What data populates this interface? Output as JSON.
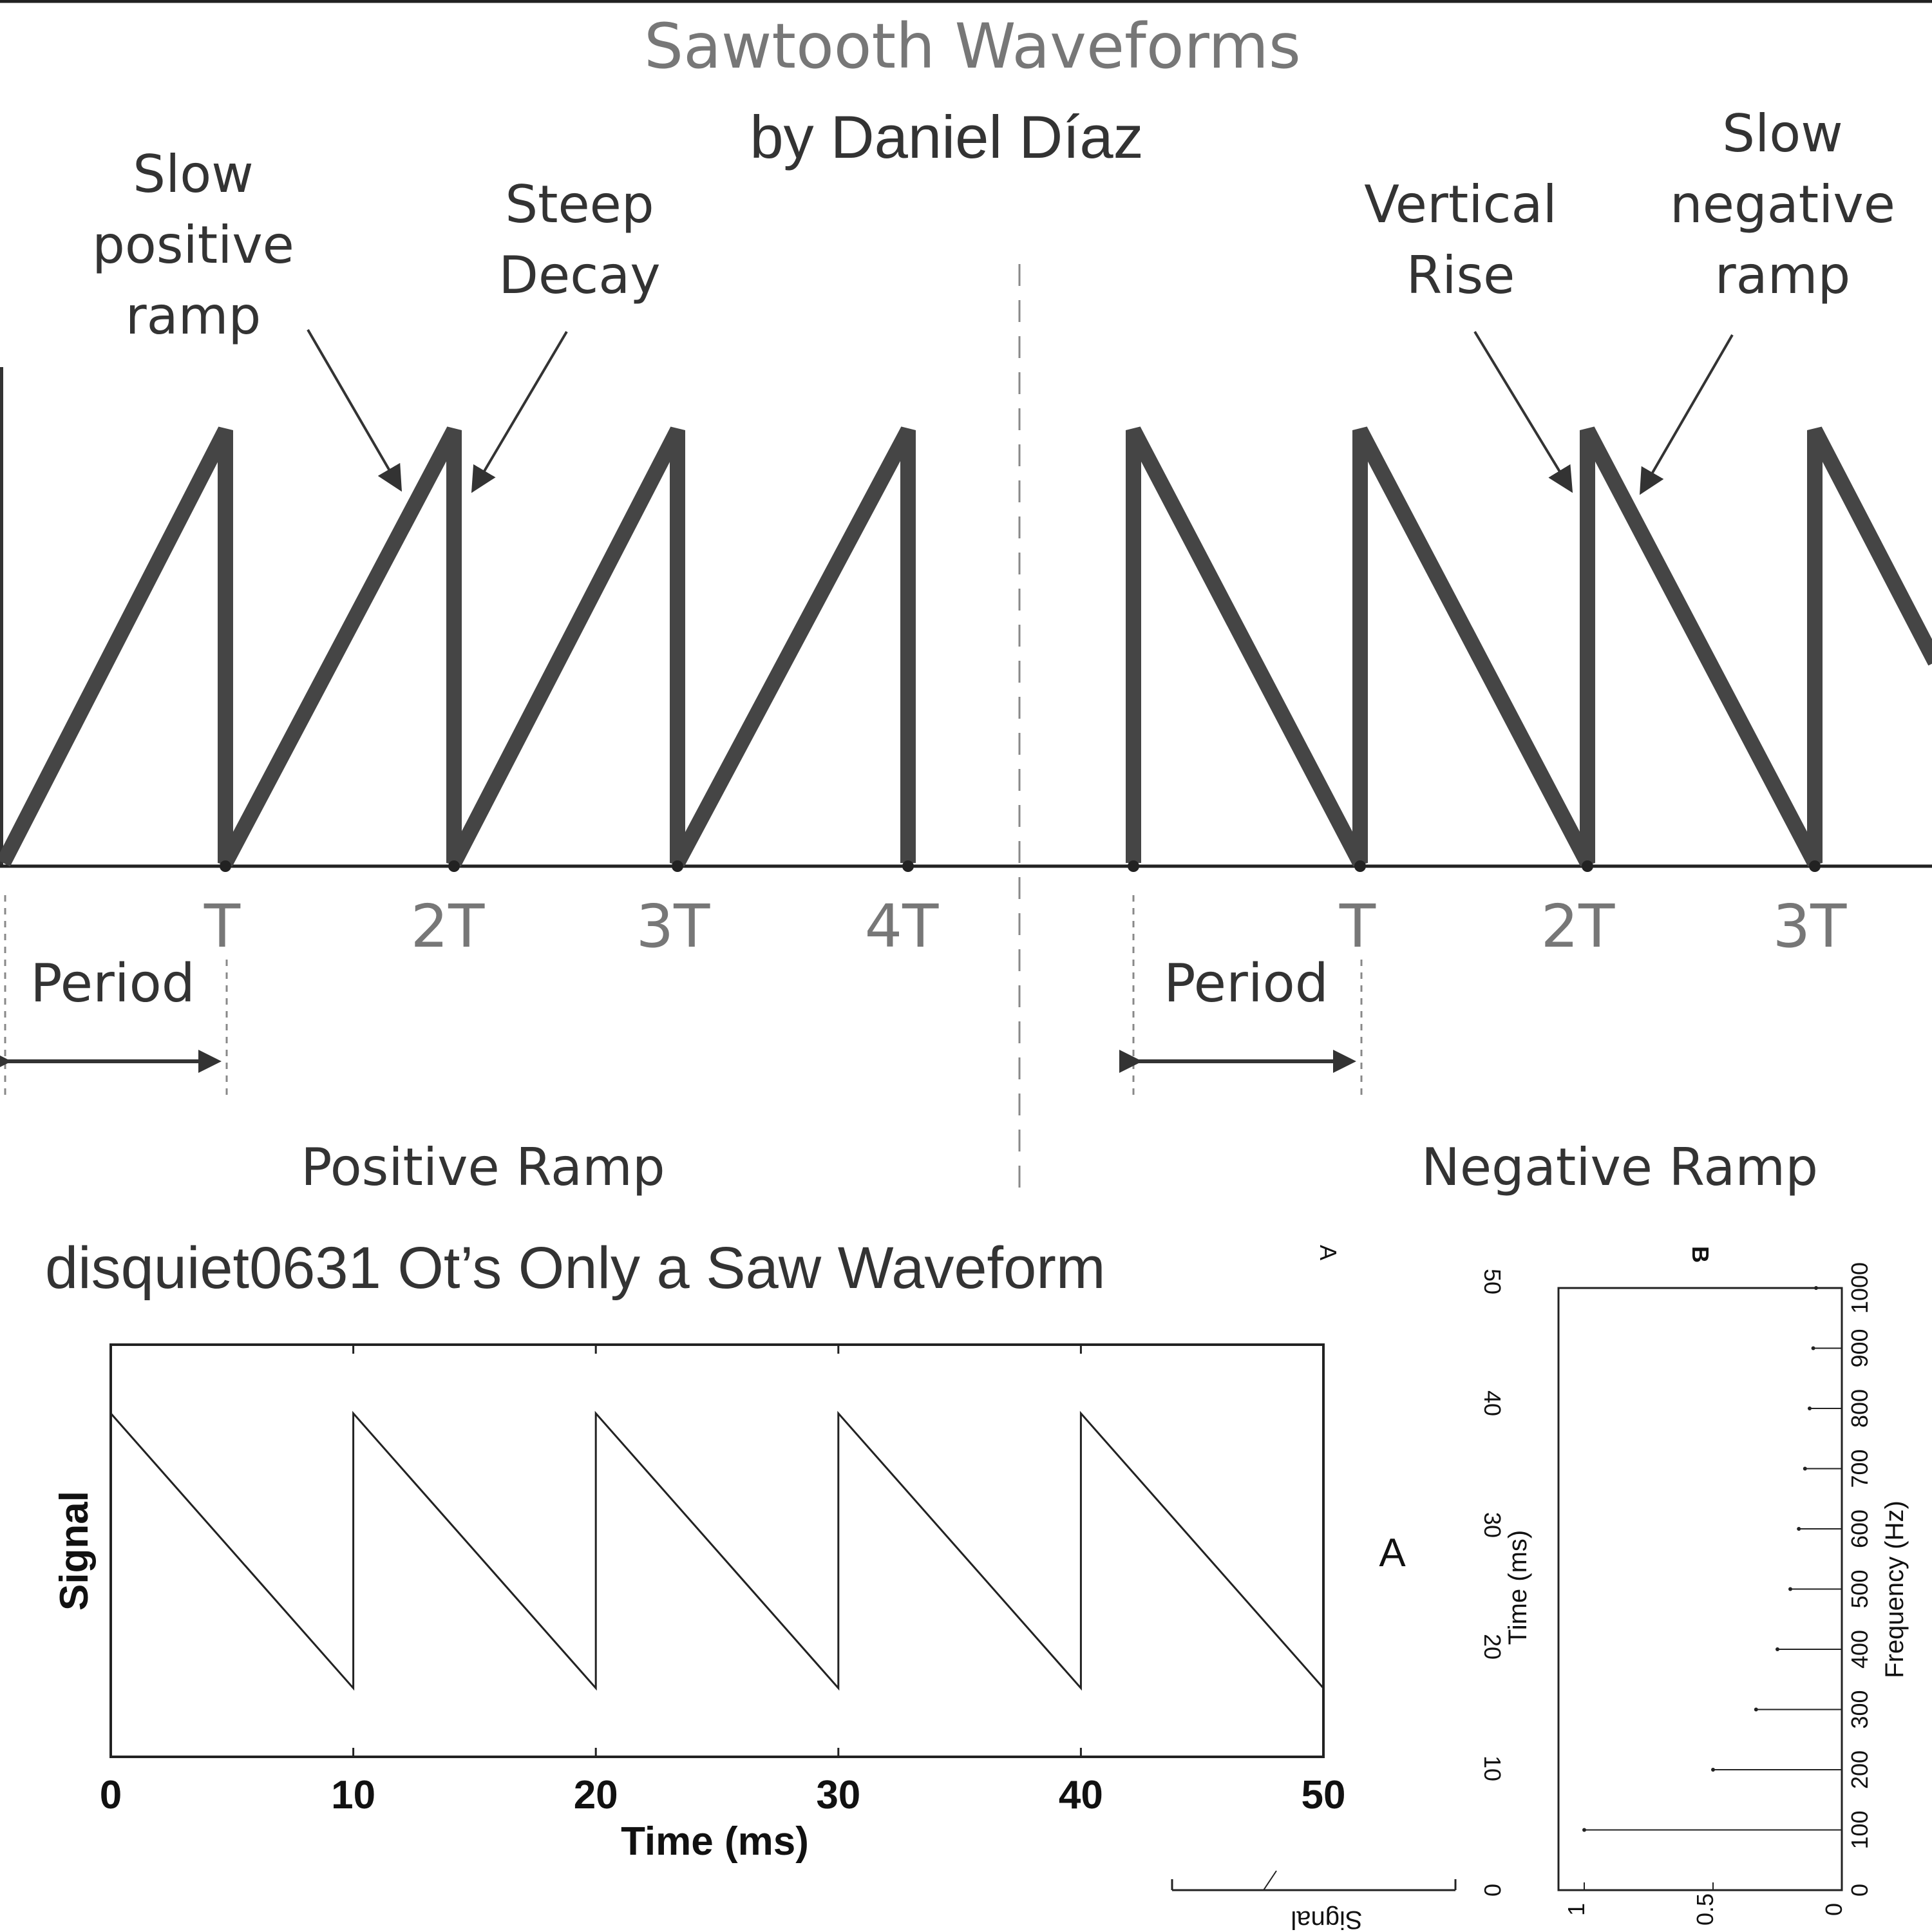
{
  "title": "Sawtooth Waveforms",
  "author": "by Daniel Díaz",
  "caption": "disquiet0631 Ot’s Only a Saw Waveform",
  "positive": {
    "label_slow_ramp": [
      "Slow",
      "positive",
      "ramp"
    ],
    "label_steep_decay": [
      "Steep",
      "Decay"
    ],
    "ticks": [
      "T",
      "2T",
      "3T",
      "4T"
    ],
    "period_label": "Period",
    "section_label": "Positive Ramp"
  },
  "negative": {
    "label_vertical_rise": [
      "Vertical",
      "Rise"
    ],
    "label_slow_neg_ramp": [
      "Slow",
      "negative",
      "ramp"
    ],
    "ticks": [
      "T",
      "2T",
      "3T"
    ],
    "period_label": "Period",
    "section_label": "Negative Ramp"
  },
  "chart_data": [
    {
      "type": "line",
      "panel": "A",
      "xlabel": "Time (ms)",
      "ylabel": "Signal",
      "xlim": [
        0,
        50
      ],
      "ylim": [
        -1.5,
        1.5
      ],
      "xticks": [
        "0",
        "10",
        "20",
        "30",
        "40",
        "50"
      ],
      "x": [
        0,
        10,
        10,
        20,
        20,
        30,
        30,
        40,
        40,
        50
      ],
      "y": [
        1,
        -1,
        1,
        -1,
        1,
        -1,
        1,
        -1,
        1,
        -1
      ]
    },
    {
      "type": "line",
      "panel": "A",
      "note": "rotated duplicate, partially visible",
      "xlabel": "Time (ms)",
      "ylabel": "Signal",
      "xticks": [
        "0",
        "10",
        "20",
        "30",
        "40",
        "50"
      ]
    },
    {
      "type": "bar",
      "panel": "B",
      "xlabel": "Frequency (Hz)",
      "categories": [
        100,
        200,
        300,
        400,
        500,
        600,
        700,
        800,
        900,
        1000
      ],
      "values": [
        1,
        0.5,
        0.333,
        0.25,
        0.2,
        0.167,
        0.143,
        0.125,
        0.111,
        0.1
      ],
      "xticks": [
        "0",
        "100",
        "200",
        "300",
        "400",
        "500",
        "600",
        "700",
        "800",
        "900",
        "1000"
      ],
      "yticks": [
        "1",
        "0.5",
        "0"
      ]
    }
  ]
}
